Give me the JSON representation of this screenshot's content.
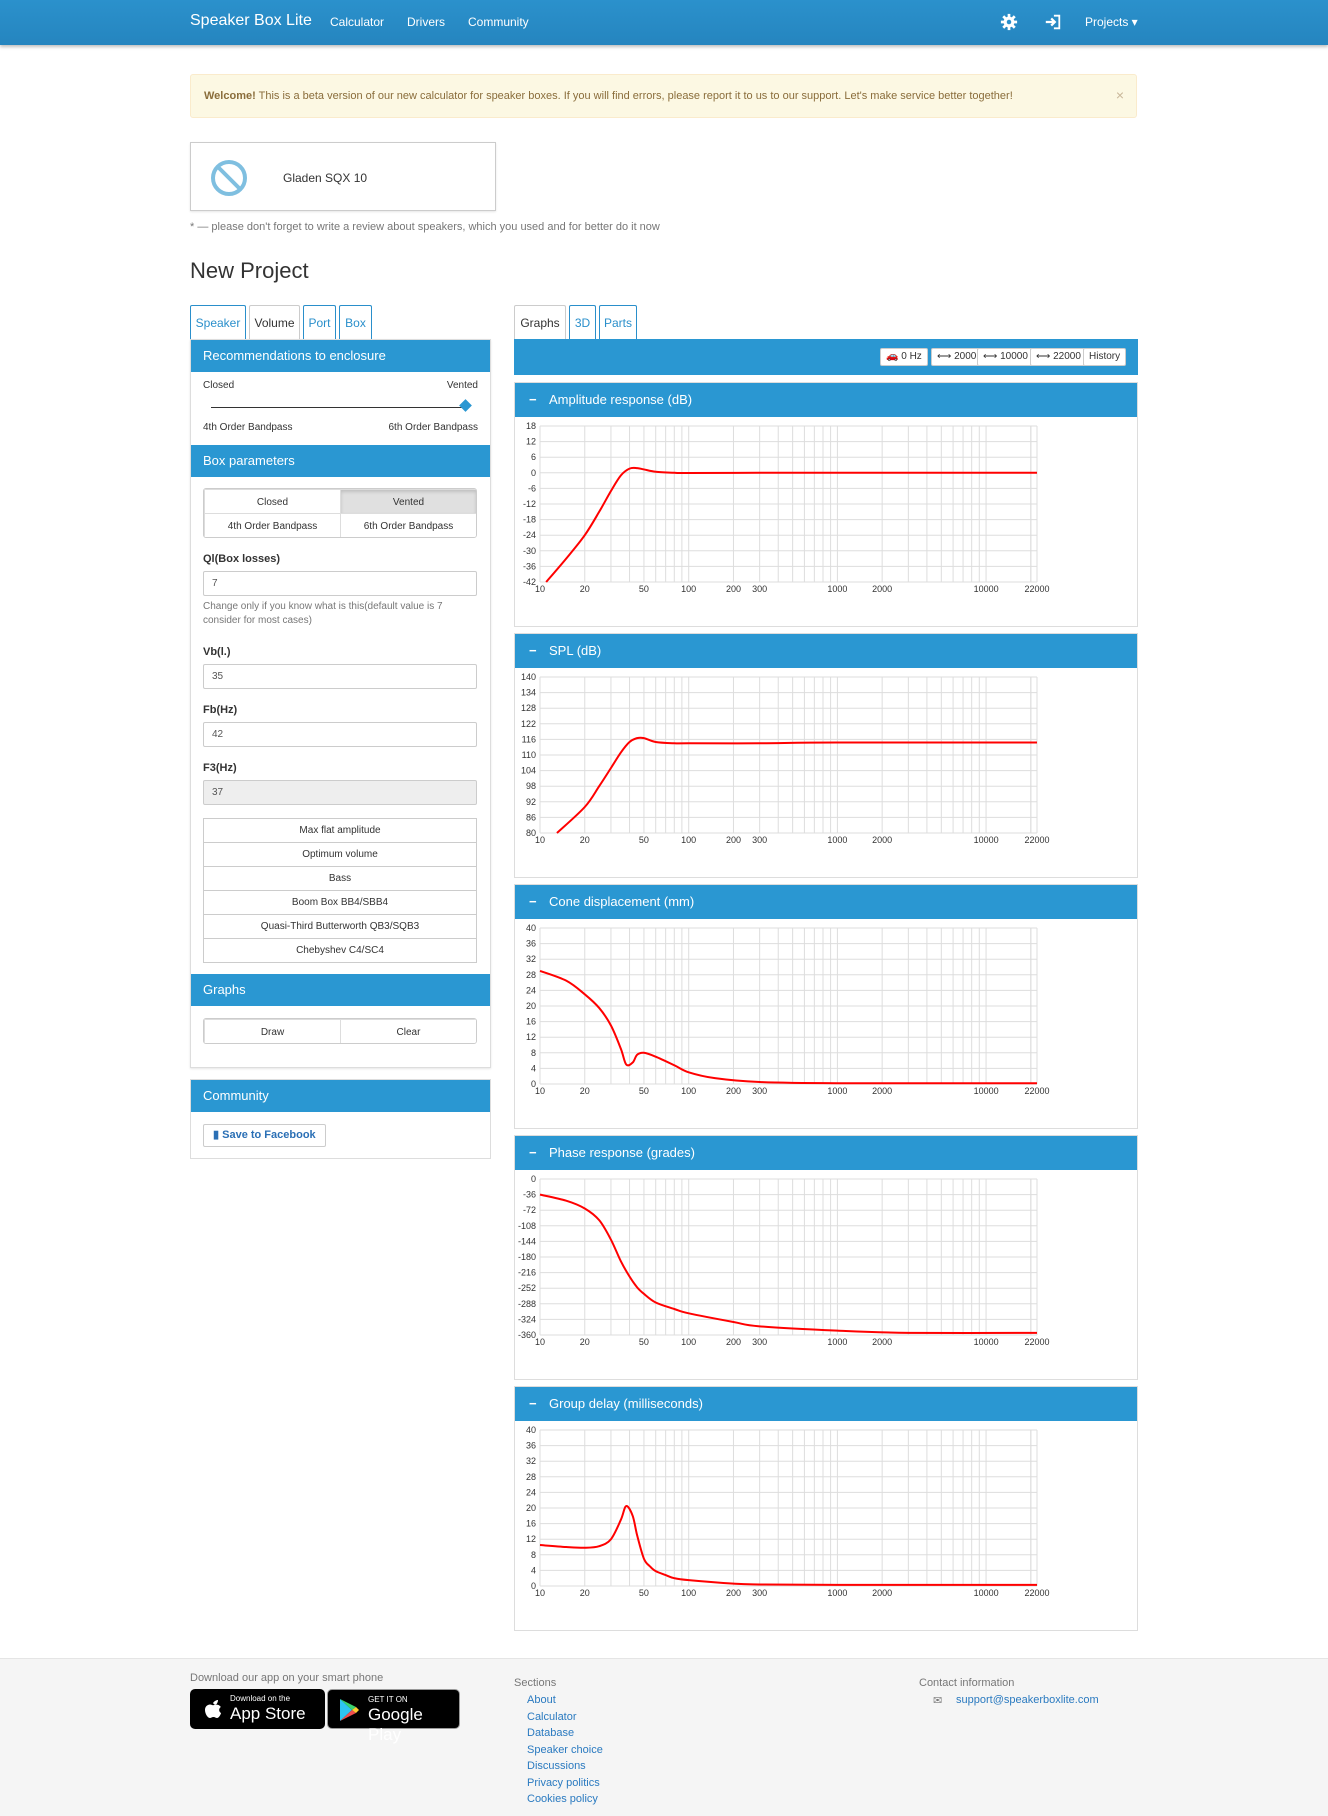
{
  "nav": {
    "brand": "Speaker Box Lite",
    "links": [
      "Calculator",
      "Drivers",
      "Community"
    ],
    "projects": "Projects ▾",
    "settings_icon": "gear-icon",
    "login_icon": "sign-in-icon"
  },
  "alert": {
    "strong": "Welcome!",
    "text": "This is a beta version of our new calculator for speaker boxes. If you will find errors, please report it to us to our support. Let's make service better together!",
    "close": "×"
  },
  "speaker": {
    "name": "Gladen SQX 10",
    "icon": "no-image-icon"
  },
  "note": "* — please don't forget to write a review about speakers, which you used and for better do it now",
  "page_title": "New Project",
  "left_tabs": [
    "Speaker",
    "Volume",
    "Port",
    "Box"
  ],
  "left_active_tab": "Volume",
  "recommend": {
    "title": "Recommendations to enclosure",
    "closed": "Closed",
    "vented": "Vented",
    "bp4": "4th Order Bandpass",
    "bp6": "6th Order Bandpass"
  },
  "box_params": {
    "title": "Box parameters",
    "types": [
      "Closed",
      "Vented",
      "4th Order Bandpass",
      "6th Order Bandpass"
    ],
    "active_type": "Vented",
    "ql_label": "Ql(Box losses)",
    "ql_value": "7",
    "ql_help": "Change only if you know what is this(default value is 7 consider for most cases)",
    "vb_label": "Vb(l.)",
    "vb_value": "35",
    "fb_label": "Fb(Hz)",
    "fb_value": "42",
    "f3_label": "F3(Hz)",
    "f3_value": "37",
    "presets": [
      "Max flat amplitude",
      "Optimum volume",
      "Bass",
      "Boom Box BB4/SBB4",
      "Quasi-Third Butterworth QB3/SQB3",
      "Chebyshev C4/SC4"
    ]
  },
  "graphs_section": {
    "title": "Graphs",
    "draw": "Draw",
    "clear": "Clear"
  },
  "community": {
    "title": "Community",
    "facebook": "Save to Facebook"
  },
  "right_tabs": [
    "Graphs",
    "3D",
    "Parts"
  ],
  "right_active_tab": "Graphs",
  "toolbar": [
    "0 Hz",
    "⟷ 2000",
    "⟷ 10000",
    "⟷ 22000",
    "History"
  ],
  "x_ticks": [
    "10",
    "20",
    "50",
    "100",
    "200",
    "300",
    "1000",
    "2000",
    "10000",
    "22000"
  ],
  "chart_data": [
    {
      "type": "line",
      "title": "Amplitude response (dB)",
      "ylim": [
        -42,
        18
      ],
      "yticks": [
        "18",
        "12",
        "6",
        "0",
        "-6",
        "-12",
        "-18",
        "-24",
        "-30",
        "-36",
        "-42"
      ],
      "xscale": "log",
      "x": [
        11,
        15,
        20,
        25,
        30,
        35,
        40,
        45,
        50,
        60,
        80,
        100,
        300,
        1000,
        22000
      ],
      "series": [
        {
          "values": [
            -42,
            -33,
            -24,
            -15,
            -7,
            -1,
            1.6,
            1.8,
            1.3,
            0.4,
            0,
            -0.1,
            0,
            0,
            0
          ]
        }
      ],
      "color": "#ff0000"
    },
    {
      "type": "line",
      "title": "SPL (dB)",
      "ylim": [
        80,
        140
      ],
      "yticks": [
        "140",
        "134",
        "128",
        "122",
        "116",
        "110",
        "104",
        "98",
        "92",
        "86",
        "80"
      ],
      "xscale": "log",
      "x": [
        13,
        20,
        25,
        30,
        35,
        40,
        45,
        50,
        60,
        80,
        100,
        300,
        1000,
        22000
      ],
      "series": [
        {
          "values": [
            80,
            90,
            98,
            105,
            111,
            115,
            116.5,
            116.5,
            115,
            114.5,
            114.5,
            114.5,
            114.8,
            114.8
          ]
        }
      ],
      "color": "#ff0000"
    },
    {
      "type": "line",
      "title": "Cone displacement (mm)",
      "ylim": [
        0,
        40
      ],
      "yticks": [
        "40",
        "36",
        "32",
        "28",
        "24",
        "20",
        "16",
        "12",
        "8",
        "4",
        "0"
      ],
      "xscale": "log",
      "x": [
        10,
        15,
        20,
        25,
        30,
        35,
        38,
        42,
        45,
        50,
        60,
        80,
        100,
        150,
        300,
        1000,
        22000
      ],
      "series": [
        {
          "values": [
            29,
            26.5,
            23,
            19.5,
            15,
            9,
            5,
            5.5,
            7.5,
            8,
            7,
            4.8,
            3,
            1.5,
            0.5,
            0.2,
            0.2
          ]
        }
      ],
      "color": "#ff0000"
    },
    {
      "type": "line",
      "title": "Phase response (grades)",
      "ylim": [
        -360,
        0
      ],
      "yticks": [
        "0",
        "-36",
        "-72",
        "-108",
        "-144",
        "-180",
        "-216",
        "-252",
        "-288",
        "-324",
        "-360"
      ],
      "xscale": "log",
      "x": [
        10,
        15,
        20,
        25,
        30,
        35,
        40,
        45,
        50,
        60,
        80,
        100,
        200,
        300,
        1000,
        3000,
        22000
      ],
      "series": [
        {
          "values": [
            -36,
            -50,
            -68,
            -95,
            -140,
            -190,
            -225,
            -250,
            -265,
            -285,
            -300,
            -310,
            -330,
            -340,
            -350,
            -355,
            -355
          ]
        }
      ],
      "color": "#ff0000"
    },
    {
      "type": "line",
      "title": "Group delay (milliseconds)",
      "ylim": [
        0,
        40
      ],
      "yticks": [
        "40",
        "36",
        "32",
        "28",
        "24",
        "20",
        "16",
        "12",
        "8",
        "4",
        "0"
      ],
      "xscale": "log",
      "x": [
        10,
        15,
        20,
        25,
        30,
        35,
        38,
        42,
        45,
        50,
        55,
        60,
        70,
        80,
        100,
        200,
        300,
        1000,
        22000
      ],
      "series": [
        {
          "values": [
            10.5,
            10,
            9.8,
            10.2,
            12,
            17,
            20.5,
            18,
            13,
            7,
            5,
            3.8,
            2.8,
            2,
            1.5,
            0.6,
            0.4,
            0.3,
            0.3
          ]
        }
      ],
      "color": "#ff0000"
    }
  ],
  "footer": {
    "app_title": "Download our app on your smart phone",
    "appstore_small": "Download on the",
    "appstore_big": "App Store",
    "gplay_small": "GET IT ON",
    "gplay_big": "Google Play",
    "sections_title": "Sections",
    "sections": [
      "About",
      "Calculator",
      "Database",
      "Speaker choice",
      "Discussions",
      "Privacy politics",
      "Cookies policy"
    ],
    "contact_title": "Contact information",
    "email": "support@speakerboxlite.com"
  }
}
